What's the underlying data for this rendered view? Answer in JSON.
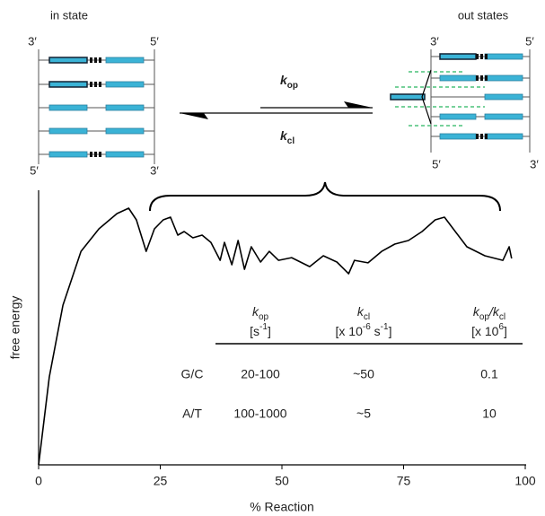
{
  "diagram": {
    "in_state": {
      "title": "in state",
      "top_left": "3′",
      "top_right": "5′",
      "bottom_left": "5′",
      "bottom_right": "3′"
    },
    "out_states": {
      "title": "out states",
      "top_left": "3′",
      "top_right": "5′",
      "bottom_left": "5′",
      "bottom_right": "3′"
    },
    "forward_rate": [
      "k",
      "op"
    ],
    "reverse_rate": [
      "k",
      "cl"
    ]
  },
  "chart_data": {
    "type": "line",
    "x_label": "% Reaction",
    "y_label": "free energy",
    "x": [
      0,
      2.2,
      5.0,
      8.7,
      12.4,
      16.1,
      18.5,
      20.1,
      22.1,
      23.8,
      25.6,
      27.1,
      28.6,
      29.9,
      31.7,
      33.6,
      35.4,
      37.3,
      38.2,
      39.7,
      41.0,
      42.3,
      43.7,
      45.6,
      47.4,
      49.3,
      52.0,
      55.7,
      58.5,
      61.3,
      63.7,
      64.9,
      67.7,
      70.5,
      73.2,
      76.0,
      78.8,
      81.5,
      83.4,
      85.2,
      88.0,
      91.7,
      95.4,
      96.7,
      97.2
    ],
    "series": [
      {
        "color": "#000000",
        "values": [
          0,
          32.3,
          58.7,
          78.5,
          86.8,
          92.4,
          94.4,
          90.1,
          78.5,
          86.8,
          90.1,
          91.1,
          84.5,
          85.8,
          83.5,
          84.5,
          81.8,
          75.2,
          81.8,
          73.6,
          82.5,
          71.9,
          80.2,
          74.6,
          78.5,
          75.2,
          76.2,
          72.9,
          76.9,
          74.6,
          70.3,
          75.2,
          74.3,
          78.5,
          81.2,
          82.5,
          85.8,
          90.1,
          91.1,
          86.8,
          80.2,
          76.9,
          75.2,
          80.2,
          75.9
        ]
      }
    ],
    "xlim": [
      0,
      100
    ],
    "xticks": [
      0,
      25,
      50,
      75,
      100
    ],
    "ylim": [
      0,
      100
    ]
  },
  "table": {
    "columns": [
      {
        "name": [
          "k",
          "op"
        ],
        "unit": [
          "[s",
          "-1",
          "]"
        ]
      },
      {
        "name": [
          "k",
          "cl"
        ],
        "unit": [
          "[x 10",
          "-6",
          " s",
          "-1",
          "]"
        ]
      },
      {
        "name": [
          "k",
          "op",
          "/k",
          "cl"
        ],
        "unit": [
          "[x 10",
          "6",
          "]"
        ]
      }
    ],
    "rows": [
      [
        "G/C",
        "20-100",
        "~50",
        "0.1"
      ],
      [
        "A/T",
        "100-1000",
        "~5",
        "10"
      ]
    ]
  }
}
